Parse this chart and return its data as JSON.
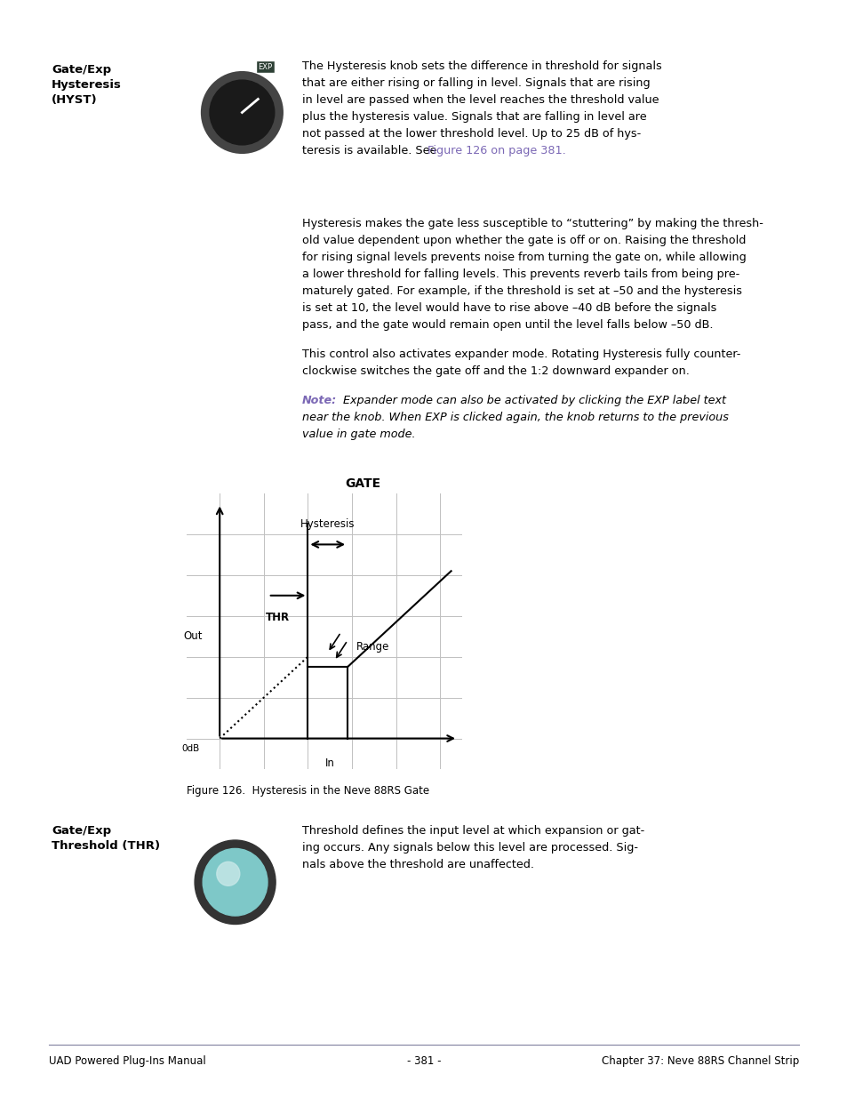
{
  "bg_color": "#ffffff",
  "section1_label_line1": "Gate/Exp",
  "section1_label_line2": "Hysteresis",
  "section1_label_line3": "(HYST)",
  "section1_link_color": "#7B68B5",
  "note_label_color": "#7B68B5",
  "figure_caption": "Figure 126.  Hysteresis in the Neve 88RS Gate",
  "section2_label_line1": "Gate/Exp",
  "section2_label_line2": "Threshold (THR)",
  "footer_left": "UAD Powered Plug-Ins Manual",
  "footer_center": "- 381 -",
  "footer_right": "Chapter 37: Neve 88RS Channel Strip"
}
